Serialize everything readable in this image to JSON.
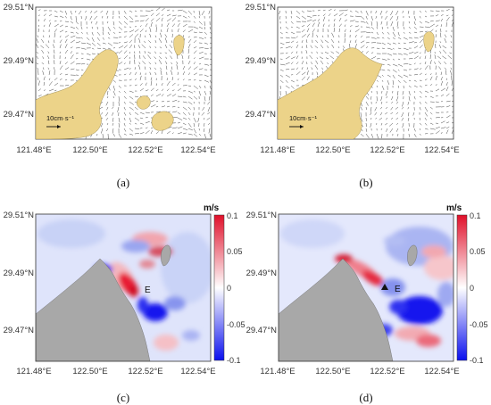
{
  "chart_data": [
    {
      "panel": "(a)",
      "type": "vector field",
      "x_ticks": [
        "121.48°E",
        "122.50°E",
        "122.52°E",
        "122.54°E"
      ],
      "y_ticks": [
        "29.51°N",
        "29.49°N",
        "29.47°N"
      ],
      "scale_label": "10cm·s⁻¹"
    },
    {
      "panel": "(b)",
      "type": "vector field",
      "x_ticks": [
        "121.48°E",
        "122.50°E",
        "122.52°E",
        "122.54°E"
      ],
      "y_ticks": [
        "29.51°N",
        "29.49°N",
        "29.47°N"
      ],
      "scale_label": "10cm·s⁻¹"
    },
    {
      "panel": "(c)",
      "type": "heatmap",
      "x_ticks": [
        "121.48°E",
        "122.50°E",
        "122.52°E",
        "122.54°E"
      ],
      "y_ticks": [
        "29.51°N",
        "29.49°N",
        "29.47°N"
      ],
      "colorbar": {
        "unit": "m/s",
        "ticks": [
          "0.1",
          "0.05",
          "0",
          "-0.05",
          "-0.1"
        ],
        "range": [
          -0.1,
          0.1
        ]
      },
      "marker": "E"
    },
    {
      "panel": "(d)",
      "type": "heatmap",
      "x_ticks": [
        "121.48°E",
        "122.50°E",
        "122.52°E",
        "122.54°E"
      ],
      "y_ticks": [
        "29.51°N",
        "29.49°N",
        "29.47°N"
      ],
      "colorbar": {
        "unit": "m/s",
        "ticks": [
          "0.1",
          "0.05",
          "0",
          "-0.05",
          "-0.1"
        ],
        "range": [
          -0.1,
          0.1
        ]
      },
      "marker": "E"
    }
  ],
  "colors": {
    "land_vector": "#ecd389",
    "land_map": "#a8a8a8",
    "positive": "#e0102a",
    "negative": "#0a10ee",
    "neutral": "#ffffff"
  }
}
